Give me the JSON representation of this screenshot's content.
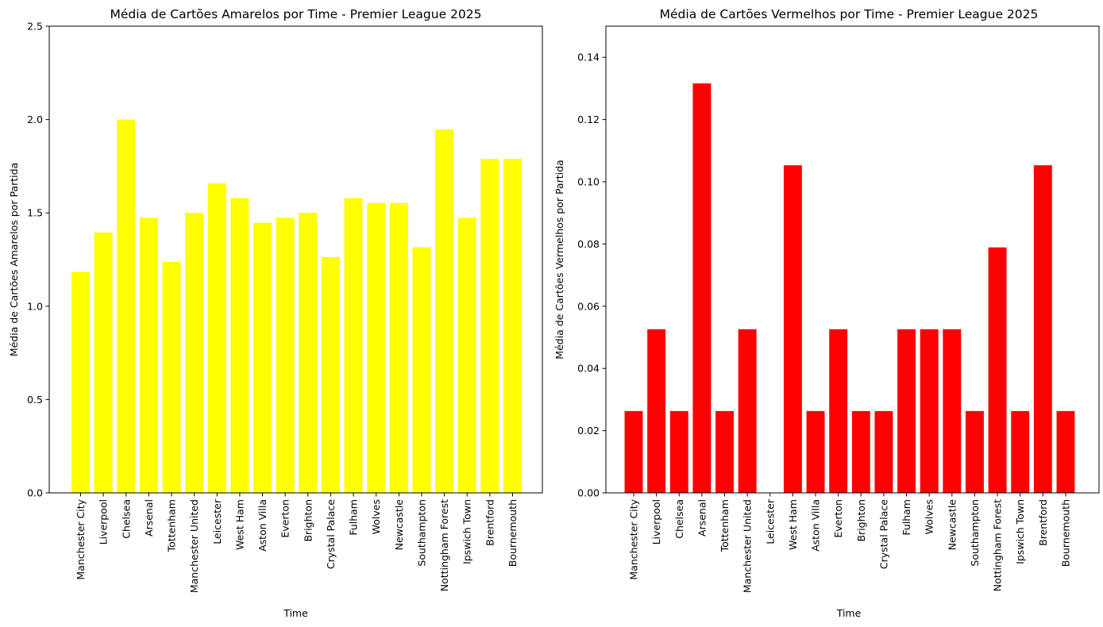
{
  "chart_data": [
    {
      "type": "bar",
      "title": "Média de Cartões Amarelos por Time - Premier League 2025",
      "xlabel": "Time",
      "ylabel": "Média de Cartões Amarelos por Partida",
      "ylim": [
        0,
        2.5
      ],
      "yticks": [
        "0.0",
        "0.5",
        "1.0",
        "1.5",
        "2.0",
        "2.5"
      ],
      "color": "#ffff00",
      "grid": false,
      "categories": [
        "Manchester City",
        "Liverpool",
        "Chelsea",
        "Arsenal",
        "Tottenham",
        "Manchester United",
        "Leicester",
        "West Ham",
        "Aston Villa",
        "Everton",
        "Brighton",
        "Crystal Palace",
        "Fulham",
        "Wolves",
        "Newcastle",
        "Southampton",
        "Nottingham Forest",
        "Ipswich Town",
        "Brentford",
        "Bournemouth"
      ],
      "values": [
        1.184,
        1.395,
        2.0,
        1.474,
        1.237,
        1.5,
        1.658,
        1.579,
        1.447,
        1.474,
        1.5,
        1.263,
        1.579,
        1.553,
        1.553,
        1.316,
        1.947,
        1.474,
        1.789,
        1.789
      ]
    },
    {
      "type": "bar",
      "title": "Média de Cartões Vermelhos por Time - Premier League 2025",
      "xlabel": "Time",
      "ylabel": "Média de Cartões Vermelhos por Partida",
      "ylim": [
        0,
        0.15
      ],
      "yticks": [
        "0.00",
        "0.02",
        "0.04",
        "0.06",
        "0.08",
        "0.10",
        "0.12",
        "0.14"
      ],
      "color": "#ff0000",
      "grid": false,
      "categories": [
        "Manchester City",
        "Liverpool",
        "Chelsea",
        "Arsenal",
        "Tottenham",
        "Manchester United",
        "Leicester",
        "West Ham",
        "Aston Villa",
        "Everton",
        "Brighton",
        "Crystal Palace",
        "Fulham",
        "Wolves",
        "Newcastle",
        "Southampton",
        "Nottingham Forest",
        "Ipswich Town",
        "Brentford",
        "Bournemouth"
      ],
      "values": [
        0.0263,
        0.0526,
        0.0263,
        0.1316,
        0.0263,
        0.0526,
        0.0,
        0.1053,
        0.0263,
        0.0526,
        0.0263,
        0.0263,
        0.0526,
        0.0526,
        0.0526,
        0.0263,
        0.0789,
        0.0263,
        0.1053,
        0.0263
      ]
    }
  ]
}
